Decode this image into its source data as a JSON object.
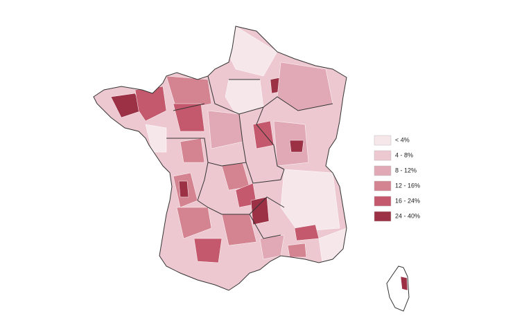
{
  "legend": {
    "items": [
      {
        "label": "< 4%",
        "color": "#f6e7eb"
      },
      {
        "label": "4 - 8%",
        "color": "#edc8d0"
      },
      {
        "label": "8 - 12%",
        "color": "#e1a9b5"
      },
      {
        "label": "12 - 16%",
        "color": "#d48391"
      },
      {
        "label": "16 - 24%",
        "color": "#c4586c"
      },
      {
        "label": "24 - 40%",
        "color": "#9c3146"
      }
    ]
  }
}
